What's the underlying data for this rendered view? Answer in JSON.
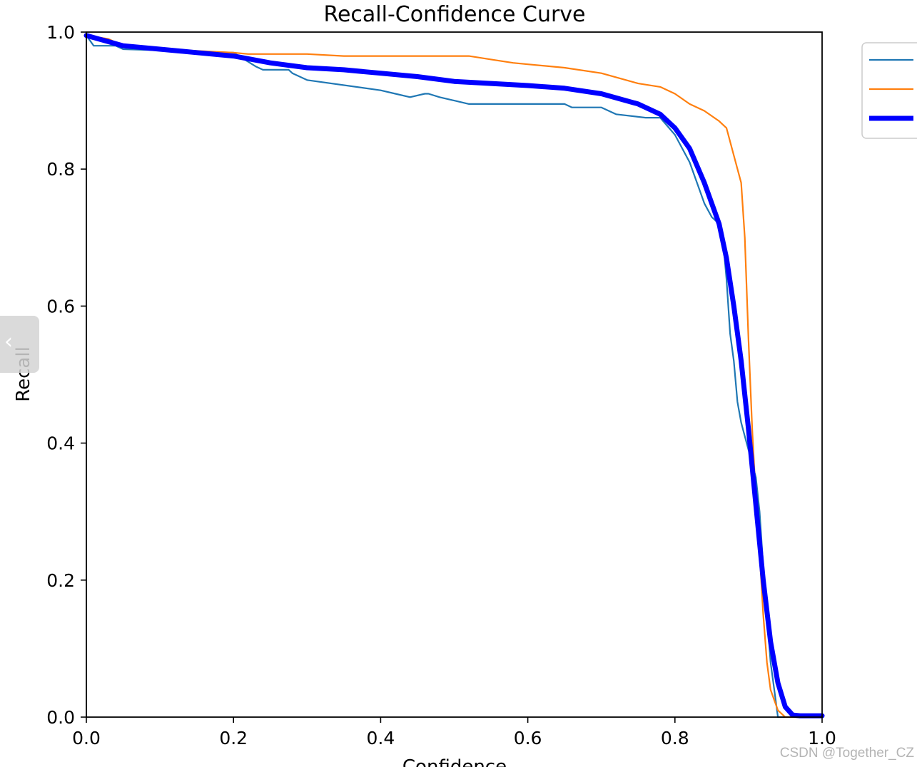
{
  "chart_data": {
    "type": "line",
    "title": "Recall-Confidence Curve",
    "xlabel": "Confidence",
    "ylabel": "Recall",
    "xlim": [
      0.0,
      1.0
    ],
    "ylim": [
      0.0,
      1.0
    ],
    "xticks": [
      "0.0",
      "0.2",
      "0.4",
      "0.6",
      "0.8",
      "1.0"
    ],
    "yticks": [
      "0.0",
      "0.2",
      "0.4",
      "0.6",
      "0.8",
      "1.0"
    ],
    "grid": false,
    "legend_position": "outside-top-right",
    "series": [
      {
        "color": "#1f77b4",
        "style": "thin",
        "x": [
          0.0,
          0.01,
          0.04,
          0.05,
          0.2,
          0.23,
          0.24,
          0.275,
          0.28,
          0.3,
          0.4,
          0.42,
          0.44,
          0.46,
          0.465,
          0.48,
          0.5,
          0.52,
          0.55,
          0.58,
          0.6,
          0.65,
          0.66,
          0.7,
          0.72,
          0.76,
          0.77,
          0.78,
          0.8,
          0.81,
          0.82,
          0.83,
          0.84,
          0.85,
          0.86,
          0.865,
          0.87,
          0.875,
          0.88,
          0.885,
          0.89,
          0.895,
          0.9,
          0.905,
          0.91,
          0.915,
          0.92,
          0.925,
          0.93,
          0.935,
          0.94,
          0.945,
          1.0
        ],
        "y": [
          0.995,
          0.98,
          0.98,
          0.975,
          0.97,
          0.95,
          0.945,
          0.945,
          0.94,
          0.93,
          0.915,
          0.91,
          0.905,
          0.91,
          0.91,
          0.905,
          0.9,
          0.895,
          0.895,
          0.895,
          0.895,
          0.895,
          0.89,
          0.89,
          0.88,
          0.875,
          0.875,
          0.875,
          0.85,
          0.83,
          0.81,
          0.78,
          0.75,
          0.73,
          0.72,
          0.7,
          0.64,
          0.56,
          0.52,
          0.46,
          0.43,
          0.41,
          0.39,
          0.37,
          0.35,
          0.3,
          0.22,
          0.15,
          0.08,
          0.04,
          0.0,
          0.0,
          0.0
        ]
      },
      {
        "color": "#ff7f0e",
        "style": "thin",
        "x": [
          0.0,
          0.03,
          0.05,
          0.1,
          0.2,
          0.22,
          0.3,
          0.35,
          0.4,
          0.45,
          0.5,
          0.52,
          0.55,
          0.58,
          0.6,
          0.65,
          0.7,
          0.75,
          0.78,
          0.8,
          0.82,
          0.84,
          0.86,
          0.87,
          0.88,
          0.89,
          0.895,
          0.9,
          0.905,
          0.91,
          0.915,
          0.92,
          0.925,
          0.93,
          0.94,
          0.95,
          0.96,
          1.0
        ],
        "y": [
          0.995,
          0.99,
          0.98,
          0.975,
          0.97,
          0.968,
          0.968,
          0.965,
          0.965,
          0.965,
          0.965,
          0.965,
          0.96,
          0.955,
          0.953,
          0.948,
          0.94,
          0.925,
          0.92,
          0.91,
          0.895,
          0.885,
          0.87,
          0.86,
          0.82,
          0.78,
          0.7,
          0.55,
          0.42,
          0.32,
          0.24,
          0.15,
          0.08,
          0.04,
          0.01,
          0.0,
          0.0,
          0.0
        ]
      },
      {
        "color": "#0000ff",
        "style": "thick",
        "x": [
          0.0,
          0.05,
          0.1,
          0.15,
          0.2,
          0.25,
          0.3,
          0.35,
          0.4,
          0.45,
          0.5,
          0.55,
          0.6,
          0.65,
          0.7,
          0.75,
          0.78,
          0.8,
          0.82,
          0.84,
          0.86,
          0.87,
          0.88,
          0.89,
          0.9,
          0.91,
          0.92,
          0.93,
          0.94,
          0.95,
          0.96,
          0.97,
          1.0
        ],
        "y": [
          0.995,
          0.98,
          0.975,
          0.97,
          0.965,
          0.955,
          0.948,
          0.945,
          0.94,
          0.935,
          0.928,
          0.925,
          0.922,
          0.918,
          0.91,
          0.895,
          0.88,
          0.86,
          0.83,
          0.78,
          0.72,
          0.67,
          0.6,
          0.52,
          0.42,
          0.31,
          0.2,
          0.11,
          0.05,
          0.015,
          0.003,
          0.002,
          0.002
        ]
      }
    ]
  },
  "watermark": "CSDN @Together_CZ"
}
